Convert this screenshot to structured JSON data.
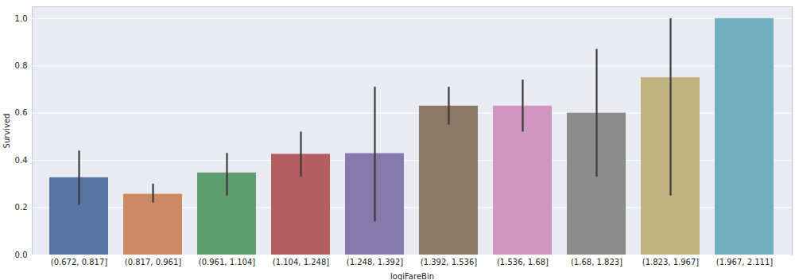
{
  "chart_data": {
    "type": "bar",
    "x_label": "logiFareBin",
    "y_label": "Survived",
    "categories": [
      "(0.672, 0.817]",
      "(0.817, 0.961]",
      "(0.961, 1.104]",
      "(1.104, 1.248]",
      "(1.248, 1.392]",
      "(1.392, 1.536]",
      "(1.536, 1.68]",
      "(1.68, 1.823]",
      "(1.823, 1.967]",
      "(1.967, 2.111]"
    ],
    "values": [
      0.327,
      0.257,
      0.347,
      0.426,
      0.429,
      0.63,
      0.63,
      0.6,
      0.75,
      1.0
    ],
    "error_low": [
      0.21,
      0.22,
      0.25,
      0.33,
      0.14,
      0.55,
      0.52,
      0.33,
      0.25,
      1.0
    ],
    "error_high": [
      0.44,
      0.3,
      0.43,
      0.52,
      0.71,
      0.71,
      0.74,
      0.87,
      1.0,
      1.0
    ],
    "colors": [
      "#5875a4",
      "#cc8963",
      "#5f9e6e",
      "#b55d60",
      "#857aab",
      "#8d7866",
      "#d095bf",
      "#8c8c8c",
      "#c1b37f",
      "#71aec0"
    ],
    "ylim": [
      0,
      1.05
    ],
    "yticks": [
      {
        "value": 0,
        "label": "0.0"
      },
      {
        "value": 0.2,
        "label": "0.2"
      },
      {
        "value": 0.4,
        "label": "0.4"
      },
      {
        "value": 0.6,
        "label": "0.6"
      },
      {
        "value": 0.8,
        "label": "0.8"
      },
      {
        "value": 1.0,
        "label": "1.0"
      }
    ],
    "grid": true
  }
}
